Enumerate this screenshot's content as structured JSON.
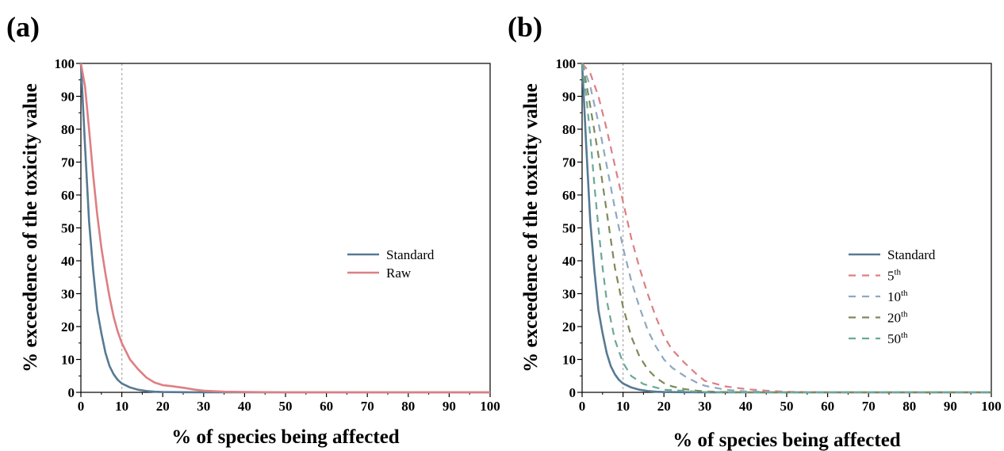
{
  "chart_data": [
    {
      "panel_label": "(a)",
      "type": "line",
      "xlabel": "% of species being affected",
      "ylabel": "% exceedence of the toxicity value",
      "xlim": [
        0,
        100
      ],
      "ylim": [
        0,
        100
      ],
      "xticks": [
        0,
        10,
        20,
        30,
        40,
        50,
        60,
        70,
        80,
        90,
        100
      ],
      "yticks": [
        0,
        10,
        20,
        30,
        40,
        50,
        60,
        70,
        80,
        90,
        100
      ],
      "reference_line_x": 10,
      "legend_position": "center-right",
      "series": [
        {
          "name": "Standard",
          "sup": "",
          "color": "#577a93",
          "dash": "solid",
          "x": [
            0,
            1,
            2,
            3,
            4,
            5,
            6,
            7,
            8,
            9,
            10,
            12,
            14,
            16,
            18,
            20,
            25,
            30,
            40,
            50,
            60,
            70,
            80,
            90,
            100
          ],
          "y": [
            100,
            75,
            52,
            37,
            25,
            18,
            12,
            8,
            5.5,
            3.8,
            2.7,
            1.5,
            0.8,
            0.4,
            0.2,
            0.1,
            0.05,
            0,
            0,
            0,
            0,
            0,
            0,
            0,
            0
          ]
        },
        {
          "name": "Raw",
          "sup": "",
          "color": "#dd7f83",
          "dash": "solid",
          "x": [
            0,
            1,
            2,
            3,
            4,
            5,
            6,
            7,
            8,
            9,
            10,
            12,
            14,
            16,
            18,
            20,
            22,
            25,
            28,
            30,
            35,
            40,
            50,
            60,
            70,
            80,
            90,
            100
          ],
          "y": [
            100,
            93,
            80,
            66,
            54,
            44,
            36,
            29,
            23,
            18.5,
            15,
            10,
            7,
            4.5,
            3,
            2.2,
            1.9,
            1.4,
            0.8,
            0.5,
            0.2,
            0.1,
            0,
            0,
            0,
            0,
            0,
            0
          ]
        }
      ]
    },
    {
      "panel_label": "(b)",
      "type": "line",
      "xlabel": "% of species being affected",
      "ylabel": "% exceedence of the toxicity value",
      "xlim": [
        0,
        100
      ],
      "ylim": [
        0,
        100
      ],
      "xticks": [
        0,
        10,
        20,
        30,
        40,
        50,
        60,
        70,
        80,
        90,
        100
      ],
      "yticks": [
        0,
        10,
        20,
        30,
        40,
        50,
        60,
        70,
        80,
        90,
        100
      ],
      "reference_line_x": 10,
      "legend_position": "right",
      "series": [
        {
          "name": "Standard",
          "sup": "",
          "color": "#577a93",
          "dash": "solid",
          "x": [
            0,
            1,
            2,
            3,
            4,
            5,
            6,
            7,
            8,
            9,
            10,
            12,
            14,
            16,
            18,
            20,
            25,
            30,
            40,
            50,
            60,
            70,
            80,
            90,
            100
          ],
          "y": [
            100,
            75,
            52,
            37,
            25,
            18,
            12,
            8,
            5.5,
            3.8,
            2.7,
            1.5,
            0.8,
            0.4,
            0.2,
            0.1,
            0.05,
            0,
            0,
            0,
            0,
            0,
            0,
            0,
            0
          ]
        },
        {
          "name": "5",
          "sup": "th",
          "color": "#dd7f83",
          "dash": "dashed",
          "x": [
            0,
            2,
            4,
            6,
            8,
            10,
            12,
            14,
            16,
            18,
            20,
            22,
            25,
            28,
            30,
            35,
            40,
            45,
            50,
            60,
            70,
            80,
            90,
            100
          ],
          "y": [
            100,
            97,
            90,
            80,
            69,
            58,
            47,
            38,
            30,
            23,
            17,
            13,
            9,
            5.5,
            3.5,
            1.8,
            1,
            0.5,
            0.2,
            0,
            0,
            0,
            0,
            0
          ]
        },
        {
          "name": "10",
          "sup": "th",
          "color": "#8fa7c1",
          "dash": "dashed",
          "x": [
            0,
            2,
            4,
            6,
            8,
            10,
            12,
            14,
            16,
            18,
            20,
            22,
            25,
            28,
            30,
            35,
            40,
            50,
            60,
            70,
            80,
            90,
            100
          ],
          "y": [
            100,
            93,
            82,
            69,
            56,
            44,
            34,
            26,
            19,
            14,
            10,
            7.5,
            5,
            3,
            2,
            0.8,
            0.3,
            0,
            0,
            0,
            0,
            0,
            0
          ]
        },
        {
          "name": "20",
          "sup": "th",
          "color": "#7c8b5a",
          "dash": "dashed",
          "x": [
            0,
            1,
            2,
            4,
            6,
            8,
            10,
            12,
            14,
            16,
            18,
            20,
            22,
            25,
            28,
            30,
            35,
            40,
            50,
            60,
            70,
            80,
            90,
            100
          ],
          "y": [
            100,
            94,
            87,
            72,
            55,
            38,
            26,
            17,
            11,
            7,
            4.5,
            2.8,
            1.8,
            1,
            0.5,
            0.3,
            0.1,
            0,
            0,
            0,
            0,
            0,
            0,
            0
          ]
        },
        {
          "name": "50",
          "sup": "th",
          "color": "#6aa996",
          "dash": "dashed",
          "x": [
            0,
            1,
            2,
            3,
            4,
            5,
            6,
            8,
            10,
            12,
            15,
            20,
            30,
            40,
            50,
            60,
            70,
            80,
            90,
            100
          ],
          "y": [
            100,
            90,
            78,
            63,
            50,
            38,
            28,
            16,
            9,
            5,
            2.5,
            0.8,
            0.1,
            0,
            0,
            0,
            0,
            0,
            0,
            0
          ]
        }
      ]
    }
  ]
}
